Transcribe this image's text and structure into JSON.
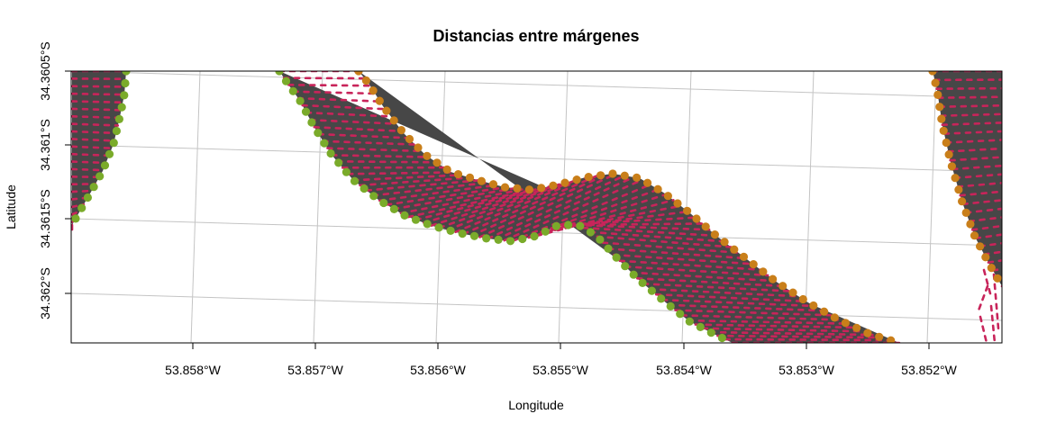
{
  "title": "Distancias entre márgenes",
  "xlabel": "Longitude",
  "ylabel": "Latitude",
  "x_ticks": [
    "53.858°W",
    "53.857°W",
    "53.856°W",
    "53.855°W",
    "53.854°W",
    "53.853°W",
    "53.852°W"
  ],
  "y_ticks": [
    "34.3605°S",
    "34.361°S",
    "34.3615°S",
    "34.362°S"
  ],
  "colors": {
    "river": "#474747",
    "distance_lines": "#c8245a",
    "margin_left": "#7aab2a",
    "margin_right": "#c97f1a",
    "grid": "#c4c4c4"
  },
  "chart_data": {
    "type": "map",
    "title": "Distancias entre márgenes",
    "xlabel": "Longitude",
    "ylabel": "Latitude",
    "xlim": [
      -53.859,
      -53.8515
    ],
    "ylim": [
      -34.3623,
      -34.3605
    ],
    "series": [
      {
        "name": "",
        "role": "river-polygon"
      },
      {
        "name": "",
        "role": "margin-left-points"
      },
      {
        "name": "",
        "role": "margin-right-points"
      },
      {
        "name": "",
        "role": "distance-segments"
      }
    ]
  }
}
